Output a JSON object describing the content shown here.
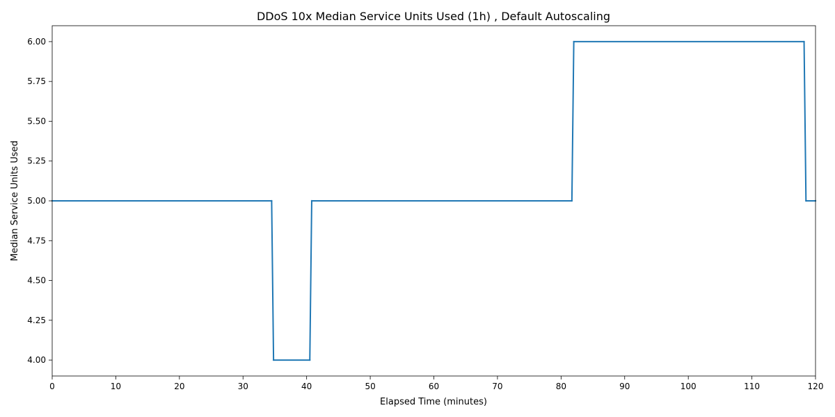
{
  "chart_data": {
    "type": "line",
    "title": "DDoS 10x Median Service Units Used (1h) , Default Autoscaling",
    "xlabel": "Elapsed Time (minutes)",
    "ylabel": "Median Service Units Used",
    "xlim": [
      0,
      120
    ],
    "ylim": [
      3.9,
      6.1
    ],
    "xticks": [
      0,
      10,
      20,
      30,
      40,
      50,
      60,
      70,
      80,
      90,
      100,
      110,
      120
    ],
    "yticks": [
      4.0,
      4.25,
      4.5,
      4.75,
      5.0,
      5.25,
      5.5,
      5.75,
      6.0
    ],
    "grid": false,
    "series": [
      {
        "color": "#1f77b4",
        "points": [
          [
            0,
            5
          ],
          [
            34.5,
            5
          ],
          [
            34.8,
            4
          ],
          [
            40.5,
            4
          ],
          [
            40.8,
            5
          ],
          [
            81.7,
            5
          ],
          [
            82.0,
            6
          ],
          [
            118.2,
            6
          ],
          [
            118.5,
            5
          ],
          [
            120,
            5
          ]
        ]
      }
    ]
  }
}
